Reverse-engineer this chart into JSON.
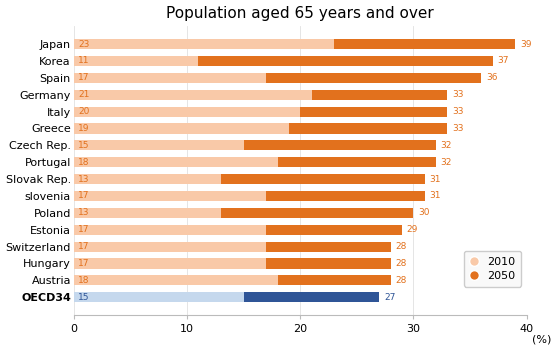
{
  "title": "Population aged 65 years and over",
  "xlabel": "(%)",
  "xlim": [
    0,
    40
  ],
  "xticks": [
    0,
    10,
    20,
    30,
    40
  ],
  "countries": [
    "Japan",
    "Korea",
    "Spain",
    "Germany",
    "Italy",
    "Greece",
    "Czech Rep.",
    "Portugal",
    "Slovak Rep.",
    "slovenia",
    "Poland",
    "Estonia",
    "Switzerland",
    "Hungary",
    "Austria",
    "OECD34"
  ],
  "val_2010": [
    23,
    11,
    17,
    21,
    20,
    19,
    15,
    18,
    13,
    17,
    13,
    17,
    17,
    17,
    18,
    15
  ],
  "val_2050": [
    39,
    37,
    36,
    33,
    33,
    33,
    32,
    32,
    31,
    31,
    30,
    29,
    28,
    28,
    28,
    27
  ],
  "color_2010_normal": "#f9c9a8",
  "color_2050_normal": "#e2711d",
  "color_2010_oecd": "#c5d8ed",
  "color_2050_oecd": "#2f5597",
  "legend_2010_label": "2010",
  "legend_2050_label": "2050",
  "background_color": "#ffffff",
  "title_fontsize": 11,
  "tick_fontsize": 8,
  "bar_label_fontsize": 6.5,
  "bar_height": 0.6
}
